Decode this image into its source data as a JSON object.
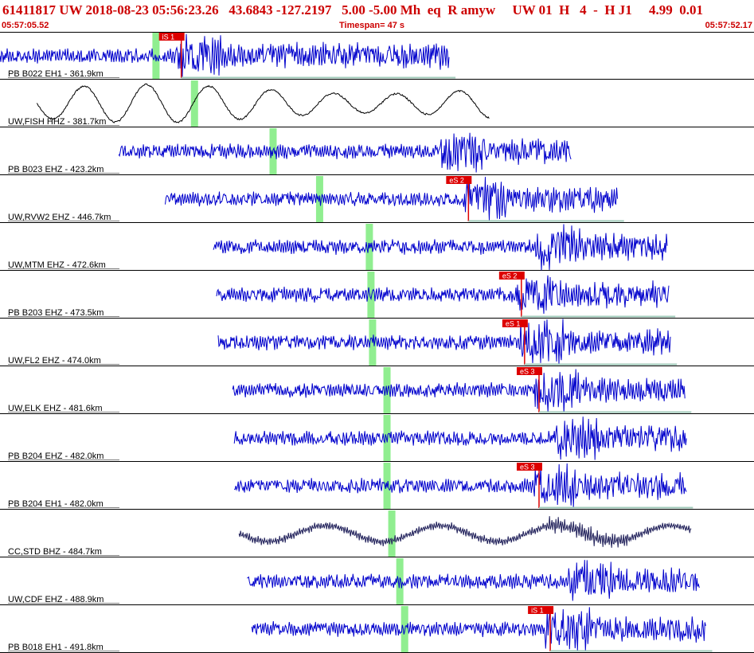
{
  "header": {
    "title": "61411817 UW 2018-08-23 05:56:23.26   43.6843 -127.2197   5.00 -5.00 Mh  eq  R amyw     UW 01  H   4  -  H J1     4.99  0.01",
    "start_time": "05:57:05.52",
    "timespan": "Timespan=  47 s",
    "end_time": "05:57:52.17"
  },
  "colors": {
    "header_text": "#cc0000",
    "trace_blue": "#0000cc",
    "trace_black": "#000000",
    "trace_navy": "#20205a",
    "pick_red": "#dd0000",
    "green_marker": "#90ee90",
    "baseline": "#9fc9b8"
  },
  "traces": [
    {
      "station": "PB B022 EH1",
      "dist": "361.9km",
      "trace_color": "blue",
      "start_s": 0.0,
      "end_s": 28.0,
      "green_s": 9.5,
      "pick": {
        "label": "iS 1",
        "time_s": 11.3
      }
    },
    {
      "station": "UW,FISH HHZ",
      "dist": "381.7km",
      "trace_color": "black",
      "start_s": 2.3,
      "end_s": 30.5,
      "green_s": 11.9,
      "pick": null
    },
    {
      "station": "PB B023 EHZ",
      "dist": "423.2km",
      "trace_color": "blue",
      "start_s": 7.4,
      "end_s": 35.6,
      "green_s": 16.8,
      "pick": null
    },
    {
      "station": "UW,RVW2 EHZ",
      "dist": "446.7km",
      "trace_color": "blue",
      "start_s": 10.3,
      "end_s": 38.5,
      "green_s": 19.7,
      "pick": {
        "label": "eS 2",
        "time_s": 29.2
      }
    },
    {
      "station": "UW,MTM EHZ",
      "dist": "472.6km",
      "trace_color": "blue",
      "start_s": 13.3,
      "end_s": 41.6,
      "green_s": 22.8,
      "pick": null
    },
    {
      "station": "PB B203 EHZ",
      "dist": "473.5km",
      "trace_color": "blue",
      "start_s": 13.5,
      "end_s": 41.7,
      "green_s": 22.9,
      "pick": {
        "label": "eS 2",
        "time_s": 32.5
      }
    },
    {
      "station": "UW,FL2 EHZ",
      "dist": "474.0km",
      "trace_color": "blue",
      "start_s": 13.6,
      "end_s": 41.8,
      "green_s": 23.0,
      "pick": {
        "label": "eS 1",
        "time_s": 32.7
      }
    },
    {
      "station": "UW,ELK EHZ",
      "dist": "481.6km",
      "trace_color": "blue",
      "start_s": 14.5,
      "end_s": 42.7,
      "green_s": 23.9,
      "pick": {
        "label": "eS 3",
        "time_s": 33.6
      }
    },
    {
      "station": "PB B204 EHZ",
      "dist": "482.0km",
      "trace_color": "blue",
      "start_s": 14.6,
      "end_s": 42.8,
      "green_s": 23.9,
      "pick": null
    },
    {
      "station": "PB B204 EH1",
      "dist": "482.0km",
      "trace_color": "blue",
      "start_s": 14.6,
      "end_s": 42.8,
      "green_s": 23.9,
      "pick": {
        "label": "eS 3",
        "time_s": 33.6
      }
    },
    {
      "station": "CC,STD BHZ",
      "dist": "484.7km",
      "trace_color": "navy",
      "start_s": 14.9,
      "end_s": 43.1,
      "green_s": 24.2,
      "pick": null
    },
    {
      "station": "UW,CDF EHZ",
      "dist": "488.9km",
      "trace_color": "blue",
      "start_s": 15.4,
      "end_s": 43.6,
      "green_s": 24.7,
      "pick": null
    },
    {
      "station": "PB B018 EH1",
      "dist": "491.8km",
      "trace_color": "blue",
      "start_s": 15.7,
      "end_s": 44.0,
      "green_s": 25.0,
      "pick": {
        "label": "iS 1",
        "time_s": 34.3
      }
    }
  ]
}
